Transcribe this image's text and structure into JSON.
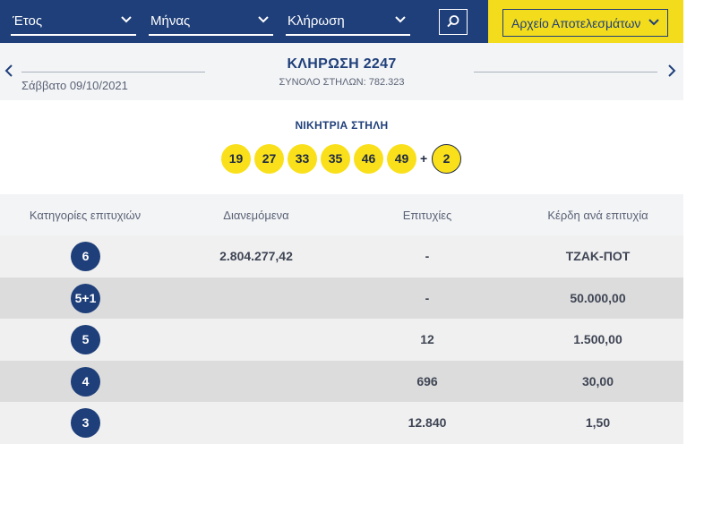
{
  "filters": {
    "year_label": "Έτος",
    "month_label": "Μήνας",
    "draw_label": "Κλήρωση",
    "archive_label": "Αρχείο Αποτελεσμάτων"
  },
  "draw": {
    "title": "ΚΛΗΡΩΣΗ 2247",
    "date": "Σάββατο 09/10/2021",
    "total_columns": "ΣΥΝΟΛΟ ΣΤΗΛΩΝ: 782.323"
  },
  "winning": {
    "label": "ΝΙΚΗΤΡΙΑ ΣΤΗΛΗ",
    "numbers": [
      "19",
      "27",
      "33",
      "35",
      "46",
      "49"
    ],
    "plus": "+",
    "bonus": "2"
  },
  "table": {
    "headers": [
      "Κατηγορίες επιτυχιών",
      "Διανεμόμενα",
      "Επιτυχίες",
      "Κέρδη ανά επιτυχία"
    ],
    "rows": [
      {
        "category": "6",
        "distributed": "2.804.277,42",
        "winners": "-",
        "prize": "ΤΖΑΚ-ΠΟΤ"
      },
      {
        "category": "5+1",
        "distributed": "",
        "winners": "-",
        "prize": "50.000,00"
      },
      {
        "category": "5",
        "distributed": "",
        "winners": "12",
        "prize": "1.500,00"
      },
      {
        "category": "4",
        "distributed": "",
        "winners": "696",
        "prize": "30,00"
      },
      {
        "category": "3",
        "distributed": "",
        "winners": "12.840",
        "prize": "1,50"
      }
    ]
  },
  "icons": {
    "search": "search-icon",
    "prev": "chevron-left-icon",
    "next": "chevron-right-icon",
    "dropdown": "chevron-down-icon"
  },
  "colors": {
    "navy": "#1f3f7a",
    "yellow": "#f2dc1c",
    "ball": "#f9e01a"
  }
}
